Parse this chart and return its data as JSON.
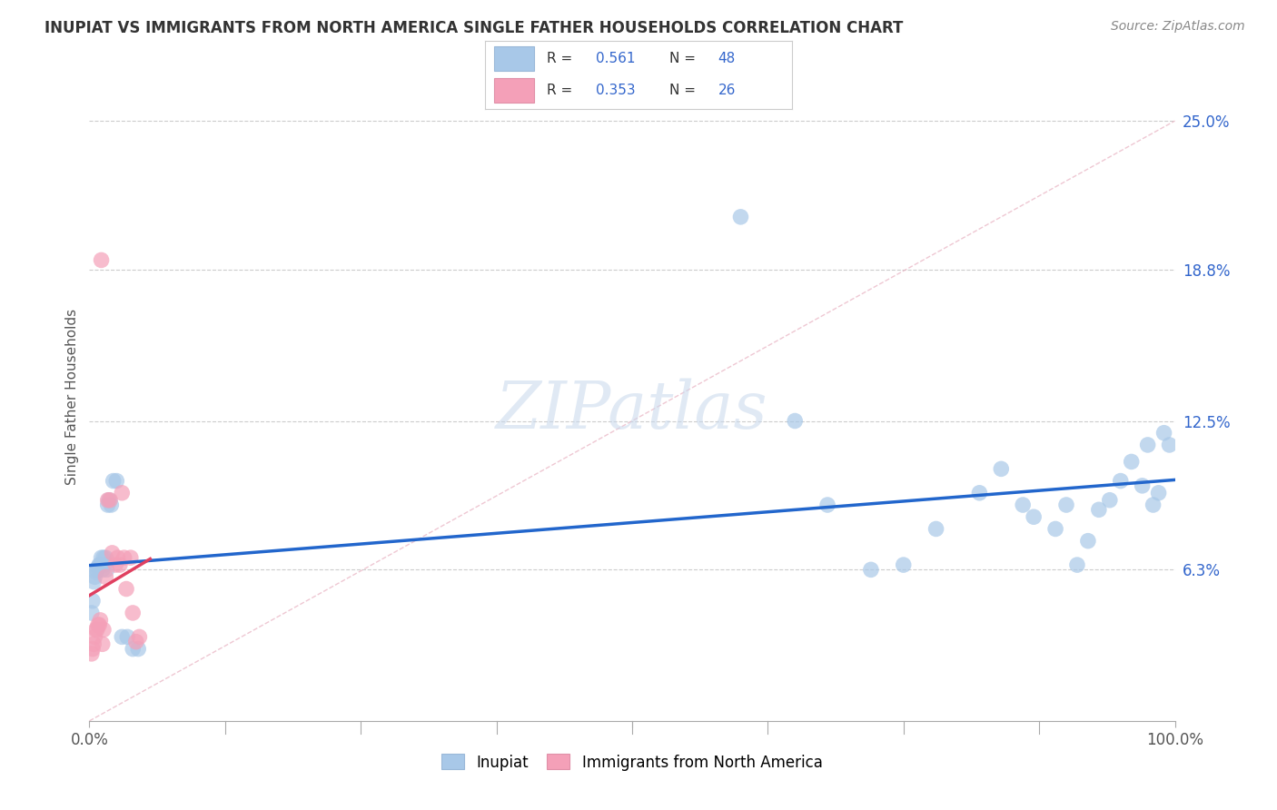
{
  "title": "INUPIAT VS IMMIGRANTS FROM NORTH AMERICA SINGLE FATHER HOUSEHOLDS CORRELATION CHART",
  "source": "Source: ZipAtlas.com",
  "ylabel": "Single Father Households",
  "ytick_values": [
    0.063,
    0.125,
    0.188,
    0.25
  ],
  "ytick_labels": [
    "6.3%",
    "12.5%",
    "18.8%",
    "25.0%"
  ],
  "inupiat_color": "#a8c8e8",
  "immigrants_color": "#f4a0b8",
  "inupiat_line_color": "#2266cc",
  "immigrants_line_color": "#e04060",
  "diagonal_color": "#cccccc",
  "watermark": "ZIPatlas",
  "r_inupiat": "0.561",
  "n_inupiat": "48",
  "r_immigrants": "0.353",
  "n_immigrants": "26",
  "inupiat_x": [
    0.002,
    0.003,
    0.004,
    0.005,
    0.006,
    0.007,
    0.008,
    0.009,
    0.01,
    0.011,
    0.012,
    0.013,
    0.014,
    0.015,
    0.016,
    0.017,
    0.018,
    0.02,
    0.022,
    0.025,
    0.03,
    0.035,
    0.04,
    0.045,
    0.6,
    0.65,
    0.68,
    0.72,
    0.75,
    0.78,
    0.82,
    0.84,
    0.86,
    0.87,
    0.89,
    0.9,
    0.91,
    0.92,
    0.93,
    0.94,
    0.95,
    0.96,
    0.97,
    0.975,
    0.98,
    0.985,
    0.99,
    0.995
  ],
  "inupiat_y": [
    0.045,
    0.05,
    0.058,
    0.06,
    0.062,
    0.063,
    0.064,
    0.065,
    0.065,
    0.068,
    0.063,
    0.068,
    0.065,
    0.068,
    0.063,
    0.09,
    0.092,
    0.09,
    0.1,
    0.1,
    0.035,
    0.035,
    0.03,
    0.03,
    0.21,
    0.125,
    0.09,
    0.063,
    0.065,
    0.08,
    0.095,
    0.105,
    0.09,
    0.085,
    0.08,
    0.09,
    0.065,
    0.075,
    0.088,
    0.092,
    0.1,
    0.108,
    0.098,
    0.115,
    0.09,
    0.095,
    0.12,
    0.115
  ],
  "immigrants_x": [
    0.002,
    0.003,
    0.004,
    0.005,
    0.006,
    0.007,
    0.008,
    0.009,
    0.01,
    0.011,
    0.012,
    0.013,
    0.015,
    0.017,
    0.019,
    0.021,
    0.024,
    0.026,
    0.028,
    0.03,
    0.032,
    0.034,
    0.038,
    0.04,
    0.043,
    0.046
  ],
  "immigrants_y": [
    0.028,
    0.03,
    0.032,
    0.035,
    0.038,
    0.038,
    0.04,
    0.04,
    0.042,
    0.192,
    0.032,
    0.038,
    0.06,
    0.092,
    0.092,
    0.07,
    0.065,
    0.068,
    0.065,
    0.095,
    0.068,
    0.055,
    0.068,
    0.045,
    0.033,
    0.035
  ]
}
